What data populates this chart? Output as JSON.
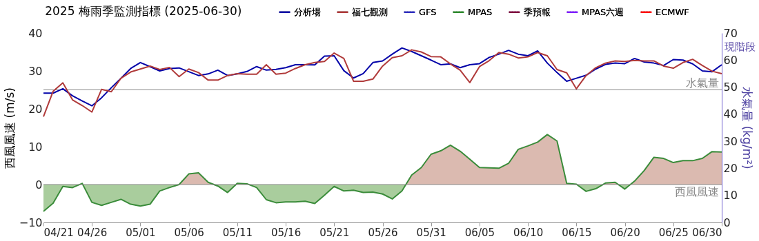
{
  "chart_data": {
    "type": "line",
    "title": "2025 梅雨季監測指標  (2025-06-30)",
    "ylabel": "西風風速 (m/s)",
    "y2label": "水氣量 (kg/m²)",
    "legend": "top right",
    "annotations": [
      "現階段"
    ],
    "x": [
      "2025-04-21",
      "2025-04-22",
      "2025-04-23",
      "2025-04-24",
      "2025-04-25",
      "2025-04-26",
      "2025-04-27",
      "2025-04-28",
      "2025-04-29",
      "2025-04-30",
      "2025-05-01",
      "2025-05-02",
      "2025-05-03",
      "2025-05-04",
      "2025-05-05",
      "2025-05-06",
      "2025-05-07",
      "2025-05-08",
      "2025-05-09",
      "2025-05-10",
      "2025-05-11",
      "2025-05-12",
      "2025-05-13",
      "2025-05-14",
      "2025-05-15",
      "2025-05-16",
      "2025-05-17",
      "2025-05-18",
      "2025-05-19",
      "2025-05-20",
      "2025-05-21",
      "2025-05-22",
      "2025-05-23",
      "2025-05-24",
      "2025-05-25",
      "2025-05-26",
      "2025-05-27",
      "2025-05-28",
      "2025-05-29",
      "2025-05-30",
      "2025-05-31",
      "2025-06-01",
      "2025-06-02",
      "2025-06-03",
      "2025-06-04",
      "2025-06-05",
      "2025-06-06",
      "2025-06-07",
      "2025-06-08",
      "2025-06-09",
      "2025-06-10",
      "2025-06-11",
      "2025-06-12",
      "2025-06-13",
      "2025-06-14",
      "2025-06-15",
      "2025-06-16",
      "2025-06-17",
      "2025-06-18",
      "2025-06-19",
      "2025-06-20",
      "2025-06-21",
      "2025-06-22",
      "2025-06-23",
      "2025-06-24",
      "2025-06-25",
      "2025-06-26",
      "2025-06-27",
      "2025-06-28",
      "2025-06-29",
      "2025-06-30"
    ],
    "xlim": [
      "2025-04-21",
      "2025-06-30"
    ],
    "xticks": [
      {
        "value": "2025-04-21",
        "label": "04/21"
      },
      {
        "value": "2025-04-26",
        "label": "04/26"
      },
      {
        "value": "2025-05-01",
        "label": "05/01"
      },
      {
        "value": "2025-05-06",
        "label": "05/06"
      },
      {
        "value": "2025-05-11",
        "label": "05/11"
      },
      {
        "value": "2025-05-16",
        "label": "05/16"
      },
      {
        "value": "2025-05-21",
        "label": "05/21"
      },
      {
        "value": "2025-05-26",
        "label": "05/26"
      },
      {
        "value": "2025-05-31",
        "label": "05/31"
      },
      {
        "value": "2025-06-05",
        "label": "06/05"
      },
      {
        "value": "2025-06-10",
        "label": "06/10"
      },
      {
        "value": "2025-06-15",
        "label": "06/15"
      },
      {
        "value": "2025-06-20",
        "label": "06/20"
      },
      {
        "value": "2025-06-25",
        "label": "06/25"
      },
      {
        "value": "2025-06-30",
        "label": "06/30"
      }
    ],
    "ylim": [
      -10,
      40
    ],
    "yticks": [
      -10,
      0,
      10,
      20,
      30,
      40
    ],
    "y2lim": [
      0,
      70
    ],
    "y2ticks": [
      0,
      10,
      20,
      30,
      40,
      50,
      60,
      70
    ],
    "ref_lines": [
      {
        "axis": "y",
        "value": 25,
        "label": "水氣量",
        "color": "#888888"
      },
      {
        "axis": "y",
        "value": 0,
        "label": "西風風速",
        "color": "#888888"
      }
    ],
    "series": [
      {
        "type": "area",
        "axis": "y",
        "color": "#3a8c3a",
        "values": [
          -7.1,
          -4.9,
          -0.5,
          -0.8,
          0.3,
          -4.7,
          -5.5,
          -4.7,
          -3.9,
          -5.2,
          -5.7,
          -5.2,
          -1.7,
          -0.8,
          0,
          2.8,
          3.1,
          0.6,
          -0.4,
          -2.1,
          0.3,
          0.2,
          -0.8,
          -4.0,
          -4.8,
          -4.6,
          -4.6,
          -4.4,
          -5.0,
          -2.8,
          -0.5,
          -1.7,
          -1.5,
          -2.1,
          -2.0,
          -2.5,
          -3.8,
          -1.7,
          2.5,
          4.5,
          8.0,
          8.9,
          10.4,
          8.8,
          6.7,
          4.5,
          4.4,
          4.3,
          5.6,
          9.3,
          10.2,
          11.2,
          13.2,
          11.5,
          0.3,
          0.1,
          -1.8,
          -1.1,
          0.4,
          0.6,
          -1.2,
          0.9,
          3.7,
          7.2,
          6.9,
          5.8,
          6.3,
          6.3,
          6.9,
          8.7,
          8.6
        ]
      },
      {
        "name": "分析場",
        "axis": "y2",
        "color": "#0000a8",
        "line_style": "solid",
        "values": [
          47.8,
          47.8,
          49.4,
          46.8,
          44.9,
          43.1,
          46.1,
          49.8,
          53.3,
          56.9,
          59.1,
          57.6,
          56.0,
          56.9,
          57.1,
          55.7,
          54.3,
          54.9,
          56.3,
          54.3,
          54.9,
          55.8,
          57.6,
          56.3,
          56.6,
          57.2,
          58.3,
          58.3,
          58.2,
          61.5,
          61.6,
          56.1,
          53.4,
          55.0,
          59.1,
          59.7,
          62.2,
          64.5,
          63.2,
          61.6,
          60.0,
          58.3,
          58.6,
          57.2,
          58.3,
          58.7,
          61.0,
          62.2,
          63.6,
          62.2,
          61.6,
          63.4,
          58.9,
          55.4,
          52.2,
          53.3,
          54.4,
          56.7,
          58.4,
          58.9,
          58.7,
          60.6,
          59.3,
          58.9,
          58.0,
          60.2,
          60.0,
          58.6,
          56.0,
          55.7,
          58.3
        ]
      },
      {
        "name": "福七觀測",
        "axis": "y2",
        "color": "#b03a3a",
        "line_style": "solid",
        "values": [
          39.1,
          48.5,
          51.6,
          45.3,
          43.2,
          40.8,
          49.2,
          48.3,
          53.3,
          55.6,
          56.7,
          57.8,
          56.5,
          57.3,
          53.9,
          56.7,
          55.4,
          52.6,
          52.6,
          54.3,
          55.0,
          54.8,
          54.8,
          58.3,
          54.8,
          55.2,
          56.9,
          58.3,
          59.1,
          59.5,
          62.6,
          60.6,
          52.2,
          52.2,
          53.0,
          57.8,
          60.9,
          61.6,
          63.8,
          63.0,
          61.3,
          61.2,
          58.6,
          56.3,
          51.7,
          57.6,
          59.8,
          62.8,
          62.2,
          60.8,
          61.2,
          62.8,
          61.6,
          56.5,
          55.3,
          49.4,
          54.3,
          57.2,
          58.9,
          59.7,
          59.5,
          59.9,
          59.7,
          59.7,
          57.8,
          57.0,
          59.1,
          60.3,
          58.0,
          55.9,
          55.0
        ]
      },
      {
        "name": "GFS",
        "axis": "y2",
        "color": "#3030c0",
        "line_style": "dotted",
        "values": [
          null,
          null,
          null,
          null,
          null,
          null,
          null,
          null,
          null,
          null,
          null,
          null,
          null,
          null,
          null,
          null,
          null,
          null,
          null,
          null,
          null,
          null,
          null,
          null,
          null,
          null,
          null,
          null,
          null,
          null,
          null,
          null,
          null,
          null,
          null,
          null,
          null,
          null,
          null,
          null,
          null,
          null,
          null,
          null,
          null,
          null,
          null,
          null,
          null,
          null,
          null,
          null,
          null,
          null,
          null,
          null,
          null,
          null,
          null,
          null,
          null,
          null,
          null,
          null,
          null,
          null,
          null,
          null,
          null,
          null,
          null
        ]
      },
      {
        "name": "MPAS",
        "axis": "y2",
        "color": "#2e8b2e",
        "line_style": "dotted",
        "values": [
          null,
          null,
          null,
          null,
          null,
          null,
          null,
          null,
          null,
          null,
          null,
          null,
          null,
          null,
          null,
          null,
          null,
          null,
          null,
          null,
          null,
          null,
          null,
          null,
          null,
          null,
          null,
          null,
          null,
          null,
          null,
          null,
          null,
          null,
          null,
          null,
          null,
          null,
          null,
          null,
          null,
          null,
          null,
          null,
          null,
          null,
          null,
          null,
          null,
          null,
          null,
          null,
          null,
          null,
          null,
          null,
          null,
          null,
          null,
          null,
          null,
          null,
          null,
          null,
          null,
          null,
          null,
          null,
          null,
          null,
          null
        ]
      },
      {
        "name": "季預報",
        "axis": "y2",
        "color": "#800040",
        "line_style": "dotted",
        "values": [
          null,
          null,
          null,
          null,
          null,
          null,
          null,
          null,
          null,
          null,
          null,
          null,
          null,
          null,
          null,
          null,
          null,
          null,
          null,
          null,
          null,
          null,
          null,
          null,
          null,
          null,
          null,
          null,
          null,
          null,
          null,
          null,
          null,
          null,
          null,
          null,
          null,
          null,
          null,
          null,
          null,
          null,
          null,
          null,
          null,
          null,
          null,
          null,
          null,
          null,
          null,
          null,
          null,
          null,
          null,
          null,
          null,
          null,
          null,
          null,
          null,
          null,
          null,
          null,
          null,
          null,
          null,
          null,
          null,
          null,
          null
        ]
      },
      {
        "name": "MPAS六週",
        "axis": "y2",
        "color": "#8020ff",
        "line_style": "dotted",
        "values": [
          null,
          null,
          null,
          null,
          null,
          null,
          null,
          null,
          null,
          null,
          null,
          null,
          null,
          null,
          null,
          null,
          null,
          null,
          null,
          null,
          null,
          null,
          null,
          null,
          null,
          null,
          null,
          null,
          null,
          null,
          null,
          null,
          null,
          null,
          null,
          null,
          null,
          null,
          null,
          null,
          null,
          null,
          null,
          null,
          null,
          null,
          null,
          null,
          null,
          null,
          null,
          null,
          null,
          null,
          null,
          null,
          null,
          null,
          null,
          null,
          null,
          null,
          null,
          null,
          null,
          null,
          null,
          null,
          null,
          null,
          null
        ]
      },
      {
        "name": "ECMWF",
        "axis": "y2",
        "color": "#ff0000",
        "line_style": "dotted",
        "values": [
          null,
          null,
          null,
          null,
          null,
          null,
          null,
          null,
          null,
          null,
          null,
          null,
          null,
          null,
          null,
          null,
          null,
          null,
          null,
          null,
          null,
          null,
          null,
          null,
          null,
          null,
          null,
          null,
          null,
          null,
          null,
          null,
          null,
          null,
          null,
          null,
          null,
          null,
          null,
          null,
          null,
          null,
          null,
          null,
          null,
          null,
          null,
          null,
          null,
          null,
          null,
          null,
          null,
          null,
          null,
          null,
          null,
          null,
          null,
          null,
          null,
          null,
          null,
          null,
          null,
          null,
          null,
          null,
          null,
          null,
          null
        ]
      }
    ]
  }
}
